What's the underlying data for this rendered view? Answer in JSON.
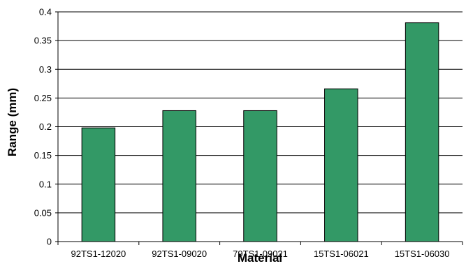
{
  "chart_data": {
    "type": "bar",
    "title": "",
    "xlabel": "Material",
    "ylabel": "Range (mm)",
    "categories": [
      "92TS1-12020",
      "92TS1-09020",
      "79TS1-09021",
      "15TS1-06021",
      "15TS1-06030"
    ],
    "values": [
      0.198,
      0.228,
      0.228,
      0.266,
      0.381
    ],
    "ylim": [
      0,
      0.4
    ],
    "yticks": [
      0,
      0.05,
      0.1,
      0.15,
      0.2,
      0.25,
      0.3,
      0.35,
      0.4
    ],
    "ytick_labels": [
      "0",
      "0.05",
      "0.1",
      "0.15",
      "0.2",
      "0.25",
      "0.3",
      "0.35",
      "0.4"
    ],
    "grid": true,
    "legend": "none",
    "colors": {
      "bar": "#339966",
      "bar_outline": "#000000",
      "grid": "#000000",
      "axis": "#000000"
    }
  }
}
